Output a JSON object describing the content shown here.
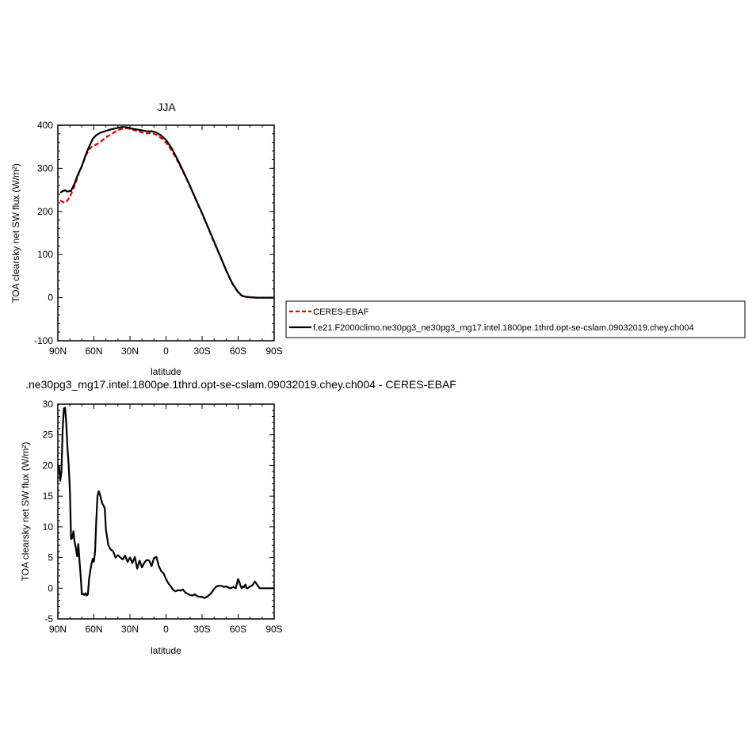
{
  "chart_data": [
    {
      "type": "line",
      "title": "JJA",
      "xlabel": "latitude",
      "ylabel": "TOA clearsky net SW flux (W/m²)",
      "xlim": [
        90,
        -90
      ],
      "ylim": [
        -100,
        400
      ],
      "x_ticks": [
        90,
        60,
        30,
        0,
        -30,
        -60,
        -90
      ],
      "x_tick_labels": [
        "90N",
        "60N",
        "30N",
        "0",
        "30S",
        "60S",
        "90S"
      ],
      "y_ticks": [
        -100,
        0,
        100,
        200,
        300,
        400
      ],
      "y_tick_labels": [
        "-100",
        "0",
        "100",
        "200",
        "300",
        "400"
      ],
      "legend_placement": "right",
      "series": [
        {
          "name": "CERES-EBAF",
          "color": "#e00000",
          "style": "dashed",
          "x": [
            88,
            86,
            84,
            82,
            79,
            76,
            73,
            70,
            67,
            64,
            61,
            58,
            55,
            50,
            45,
            40,
            36,
            32,
            28,
            24,
            20,
            16,
            12,
            8,
            4,
            0,
            -5,
            -10,
            -15,
            -20,
            -25,
            -30,
            -35,
            -40,
            -45,
            -50,
            -55,
            -60,
            -63,
            -66,
            -70,
            -75,
            -80,
            -85,
            -90
          ],
          "y": [
            226,
            222,
            220,
            225,
            240,
            260,
            285,
            305,
            328,
            344,
            352,
            355,
            360,
            372,
            380,
            389,
            392,
            393,
            390,
            386,
            383,
            381,
            382,
            378,
            370,
            360,
            340,
            315,
            287,
            258,
            226,
            195,
            162,
            128,
            96,
            63,
            33,
            12,
            4,
            2,
            1,
            0,
            0,
            0,
            0
          ]
        },
        {
          "name": "f.e21.F2000climo.ne30pg3_ne30pg3_mg17.intel.1800pe.1thrd.opt-se-cslam.09032019.chey.ch004",
          "color": "#000000",
          "style": "solid",
          "x": [
            88,
            86,
            84,
            82,
            79,
            76,
            73,
            70,
            67,
            64,
            61,
            58,
            55,
            50,
            45,
            40,
            36,
            32,
            28,
            24,
            20,
            16,
            12,
            8,
            4,
            0,
            -5,
            -10,
            -15,
            -20,
            -25,
            -30,
            -35,
            -40,
            -45,
            -50,
            -55,
            -60,
            -63,
            -66,
            -70,
            -75,
            -80,
            -85,
            -90
          ],
          "y": [
            243,
            247,
            249,
            246,
            248,
            265,
            288,
            305,
            330,
            350,
            368,
            377,
            382,
            387,
            391,
            394,
            396,
            395,
            392,
            390,
            388,
            386,
            386,
            383,
            376,
            366,
            345,
            318,
            289,
            259,
            227,
            196,
            163,
            130,
            97,
            64,
            34,
            13,
            5,
            2,
            1,
            0,
            0,
            0,
            0
          ]
        }
      ]
    },
    {
      "type": "line",
      "title": ".ne30pg3_mg17.intel.1800pe.1thrd.opt-se-cslam.09032019.chey.ch004 - CERES-EBAF",
      "xlabel": "latitude",
      "ylabel": "TOA clearsky net SW flux (W/m²)",
      "xlim": [
        90,
        -90
      ],
      "ylim": [
        -5,
        30
      ],
      "x_ticks": [
        90,
        60,
        30,
        0,
        -30,
        -60,
        -90
      ],
      "x_tick_labels": [
        "90N",
        "60N",
        "30N",
        "0",
        "30S",
        "60S",
        "90S"
      ],
      "y_ticks": [
        -5,
        0,
        5,
        10,
        15,
        20,
        25,
        30
      ],
      "y_tick_labels": [
        "-5",
        "0",
        "5",
        "10",
        "15",
        "20",
        "25",
        "30"
      ],
      "series": [
        {
          "color": "#000000",
          "style": "solid",
          "x": [
            89,
            88,
            87,
            86,
            85,
            84,
            83,
            82,
            81,
            80,
            79,
            78,
            77,
            76,
            75,
            74,
            73,
            72,
            71,
            70,
            69,
            68,
            67,
            66,
            65,
            64,
            63,
            62,
            61,
            60,
            59,
            58,
            57,
            56,
            55,
            54,
            53,
            52,
            51,
            50,
            48,
            46,
            44,
            42,
            40,
            38,
            36,
            34,
            32,
            30,
            28,
            26,
            24,
            22,
            20,
            18,
            16,
            14,
            12,
            10,
            8,
            6,
            4,
            2,
            0,
            -2,
            -4,
            -6,
            -8,
            -10,
            -12,
            -14,
            -16,
            -18,
            -20,
            -22,
            -24,
            -26,
            -28,
            -30,
            -32,
            -34,
            -36,
            -38,
            -40,
            -42,
            -44,
            -46,
            -48,
            -50,
            -52,
            -54,
            -56,
            -58,
            -60,
            -61,
            -62,
            -63,
            -64,
            -65,
            -66,
            -67,
            -68,
            -70,
            -72,
            -74,
            -76,
            -78,
            -80,
            -82,
            -84,
            -86,
            -88,
            -90
          ],
          "y": [
            20,
            17.5,
            19,
            26,
            29.3,
            29.4,
            27,
            23,
            20,
            16,
            8,
            8.2,
            9.3,
            7.5,
            6.5,
            5.2,
            7.2,
            4.5,
            2,
            -1,
            -0.9,
            -1.1,
            -0.8,
            -1.2,
            -1,
            1.5,
            2.8,
            4,
            4.8,
            4.3,
            6,
            11,
            15,
            15.8,
            15.3,
            14.5,
            13.8,
            13.5,
            13,
            9.5,
            7,
            6.3,
            6,
            5,
            5.4,
            5,
            4.7,
            5.3,
            4.3,
            5,
            4.1,
            5.1,
            3.2,
            4.5,
            3.4,
            4.2,
            4.6,
            4.5,
            3.6,
            4.9,
            5.1,
            3.6,
            2.8,
            2.4,
            1.5,
            0.8,
            0.3,
            -0.3,
            -0.5,
            -0.3,
            -0.4,
            -0.2,
            -0.7,
            -0.9,
            -1.1,
            -1.2,
            -1.0,
            -1.3,
            -1.4,
            -1.4,
            -1.6,
            -1.4,
            -1.1,
            -0.7,
            -0.1,
            0.3,
            0.4,
            0.4,
            0.2,
            0.3,
            0.1,
            0.0,
            0.2,
            0.0,
            1.5,
            1.0,
            0.4,
            0.0,
            0.3,
            0.2,
            0.6,
            0.0,
            0.0,
            0.3,
            0.5,
            1.1,
            0.5,
            0.0,
            0.0,
            0.0,
            0.0,
            0.0,
            0.0,
            0.0
          ]
        }
      ]
    }
  ]
}
